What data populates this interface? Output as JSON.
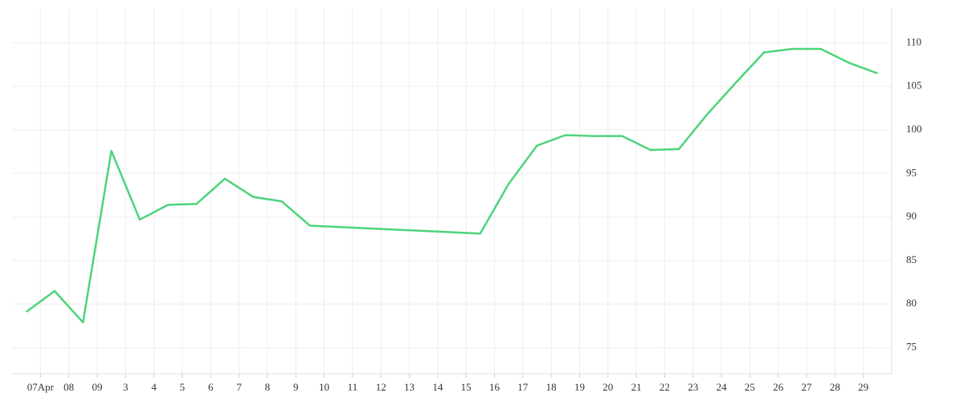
{
  "chart_data": {
    "type": "line",
    "x": [
      -0.5,
      0.5,
      1.5,
      2.5,
      3.5,
      4.5,
      5.5,
      6.5,
      7.5,
      8.5,
      9.5,
      15.5,
      16.5,
      17.5,
      18.5,
      19.5,
      20.5,
      21.5,
      22.5,
      23.5,
      24.5,
      25.5,
      26.5,
      27.5,
      28.5,
      29.5
    ],
    "series": [
      {
        "color": "#4cd47a",
        "values": [
          79.1,
          81.5,
          77.9,
          97.6,
          89.7,
          91.4,
          91.5,
          94.4,
          92.3,
          91.8,
          89.0,
          88.1,
          93.8,
          98.2,
          99.4,
          99.3,
          99.3,
          97.7,
          97.8,
          101.8,
          105.4,
          108.9,
          109.3,
          109.3,
          107.7,
          106.5
        ]
      }
    ],
    "xlim": [
      -1,
      30
    ],
    "xticks": [
      {
        "value": 0,
        "label": "07Apr"
      },
      {
        "value": 1,
        "label": "08"
      },
      {
        "value": 2,
        "label": "09"
      },
      3,
      4,
      5,
      6,
      7,
      8,
      9,
      10,
      11,
      12,
      13,
      14,
      15,
      16,
      17,
      18,
      19,
      20,
      21,
      22,
      23,
      24,
      25,
      26,
      27,
      28,
      29
    ],
    "ylim": [
      72,
      114
    ],
    "yticks": [
      75,
      80,
      85,
      90,
      95,
      100,
      105,
      110
    ],
    "grid": true
  }
}
